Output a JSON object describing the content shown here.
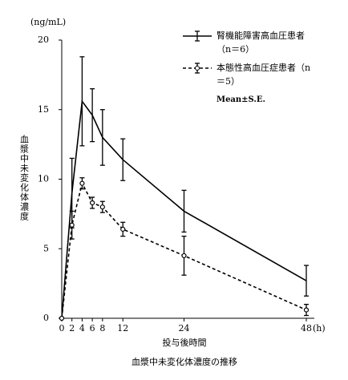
{
  "chart_data": {
    "type": "line",
    "y_unit": "(ng/mL)",
    "y_title": "血漿中未変化体濃度",
    "x_title": "投与後時間",
    "x_unit": "(h)",
    "caption": "血漿中未変化体濃度の推移",
    "note": "Mean±S.E.",
    "x": [
      0,
      2,
      4,
      6,
      8,
      12,
      24,
      48
    ],
    "series": [
      {
        "name": "腎機能障害高血圧患者（n＝6）",
        "color": "#000000",
        "dashed": false,
        "marker": "none",
        "values": [
          0,
          9.0,
          15.6,
          14.6,
          13.0,
          11.4,
          7.7,
          2.7
        ],
        "errors": [
          0,
          2.5,
          3.2,
          1.9,
          2.0,
          1.5,
          1.5,
          1.1
        ]
      },
      {
        "name": "本態性高血圧症患者（n＝5）",
        "color": "#000000",
        "dashed": true,
        "marker": "circle",
        "values": [
          0,
          6.7,
          9.7,
          8.3,
          8.0,
          6.4,
          4.5,
          0.6
        ],
        "errors": [
          0,
          1.0,
          0.4,
          0.4,
          0.4,
          0.5,
          1.4,
          0.4
        ]
      }
    ],
    "xlim": [
      0,
      48
    ],
    "ylim": [
      0,
      20
    ],
    "xticks": [
      0,
      2,
      4,
      6,
      8,
      12,
      24,
      48
    ],
    "yticks": [
      0,
      5,
      10,
      15,
      20
    ]
  }
}
